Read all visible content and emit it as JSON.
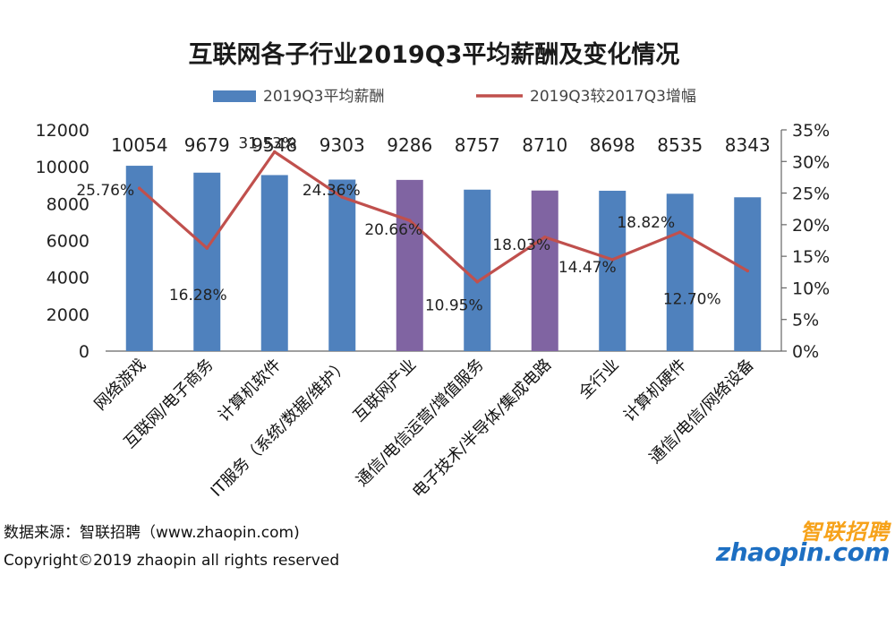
{
  "chart_data": {
    "type": "bar",
    "title": "互联网各子行业2019Q3平均薪酬及变化情况",
    "categories": [
      "网络游戏",
      "互联网/电子商务",
      "计算机软件",
      "IT服务（系统/数据/维护）",
      "互联网产业",
      "通信/电信运营/增值服务",
      "电子技术/半导体/集成电路",
      "全行业",
      "计算机硬件",
      "通信/电信/网络设备"
    ],
    "series": [
      {
        "name": "2019Q3平均薪酬",
        "type": "bar",
        "axis": "left",
        "color": "#4f81bd",
        "values": [
          10054,
          9679,
          9548,
          9303,
          9286,
          8757,
          8710,
          8698,
          8535,
          8343
        ],
        "labels": [
          "10054",
          "9679",
          "9548",
          "9303",
          "9286",
          "8757",
          "8710",
          "8698",
          "8535",
          "8343"
        ]
      },
      {
        "name": "2019Q3较2017Q3增幅",
        "type": "line",
        "axis": "right",
        "color": "#c0504d",
        "values": [
          25.76,
          16.28,
          31.53,
          24.36,
          20.66,
          10.95,
          18.03,
          14.47,
          18.82,
          12.7
        ],
        "labels": [
          "25.76%",
          "16.28%",
          "31.53%",
          "24.36%",
          "20.66%",
          "10.95%",
          "18.03%",
          "14.47%",
          "18.82%",
          "12.70%"
        ]
      }
    ],
    "highlight_indices": [
      4,
      6
    ],
    "highlight_color": "#8064a2",
    "yleft": {
      "lim": [
        0,
        12000
      ],
      "ticks": [
        "0",
        "2000",
        "4000",
        "6000",
        "8000",
        "10000",
        "12000"
      ]
    },
    "yright": {
      "lim": [
        0,
        35
      ],
      "ticks": [
        "0%",
        "5%",
        "10%",
        "15%",
        "20%",
        "25%",
        "30%",
        "35%"
      ]
    },
    "legend_position": "top"
  },
  "source_text": "数据来源：智联招聘（www.zhaopin.com)",
  "copyright_text": "Copyright©2019 zhaopin all rights reserved",
  "logo": {
    "cn": "智联招聘",
    "en": "zhaopin.com"
  }
}
